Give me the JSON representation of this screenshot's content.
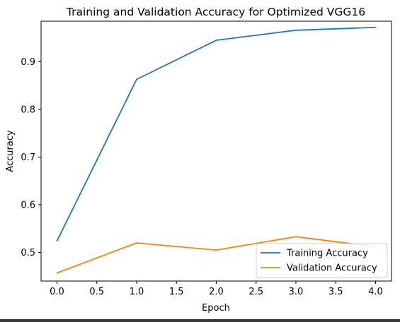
{
  "chart_data": {
    "type": "line",
    "title": "Training and Validation Accuracy for Optimized VGG16",
    "xlabel": "Epoch",
    "ylabel": "Accuracy",
    "xlim": [
      -0.2,
      4.2
    ],
    "ylim": [
      0.44,
      0.985
    ],
    "xticks": [
      0.0,
      0.5,
      1.0,
      1.5,
      2.0,
      2.5,
      3.0,
      3.5,
      4.0
    ],
    "xtick_labels": [
      "0.0",
      "0.5",
      "1.0",
      "1.5",
      "2.0",
      "2.5",
      "3.0",
      "3.5",
      "4.0"
    ],
    "yticks": [
      0.5,
      0.6,
      0.7,
      0.8,
      0.9
    ],
    "ytick_labels": [
      "0.5",
      "0.6",
      "0.7",
      "0.8",
      "0.9"
    ],
    "grid": false,
    "legend_position": "lower-right",
    "x": [
      0,
      1,
      2,
      3,
      4
    ],
    "series": [
      {
        "name": "Training Accuracy",
        "color": "#1f77b4",
        "values": [
          0.524,
          0.863,
          0.945,
          0.966,
          0.972
        ]
      },
      {
        "name": "Validation Accuracy",
        "color": "#ff7f0e",
        "values": [
          0.457,
          0.52,
          0.505,
          0.533,
          0.512
        ]
      }
    ]
  }
}
